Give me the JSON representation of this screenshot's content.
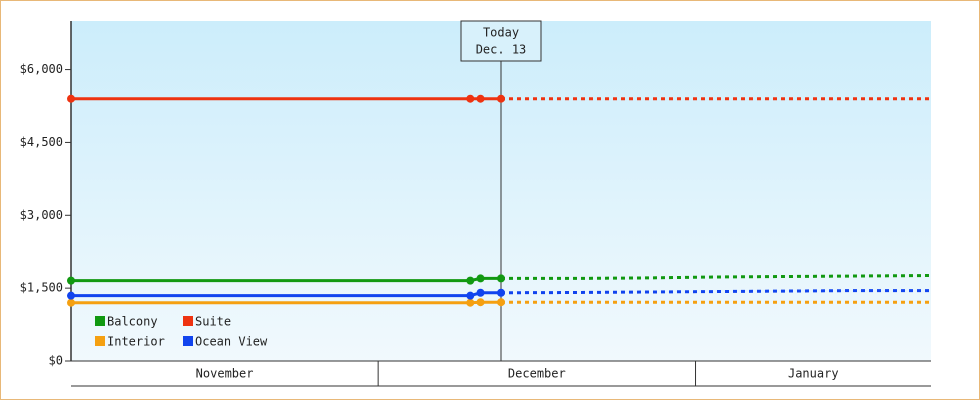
{
  "chart_data": {
    "type": "line",
    "x": [
      0,
      39,
      40,
      42
    ],
    "forecast_x": [
      42,
      49,
      56,
      63,
      70,
      77,
      84
    ],
    "xlim": [
      0,
      84
    ],
    "x_bands": [
      {
        "label": "November",
        "start": 0,
        "end": 30
      },
      {
        "label": "December",
        "start": 30,
        "end": 61
      },
      {
        "label": "January",
        "start": 61,
        "end": 84
      }
    ],
    "today": {
      "x": 42,
      "title": "Today",
      "date": "Dec. 13"
    },
    "ylim": [
      0,
      7000
    ],
    "yticks": [
      {
        "value": 0,
        "label": "$0"
      },
      {
        "value": 1500,
        "label": "$1,500"
      },
      {
        "value": 3000,
        "label": "$3,000"
      },
      {
        "value": 4500,
        "label": "$4,500"
      },
      {
        "value": 6000,
        "label": "$6,000"
      }
    ],
    "series": [
      {
        "name": "Balcony",
        "color": "#119911",
        "values": [
          1655,
          1655,
          1700,
          1700
        ],
        "forecast": [
          1700,
          1700,
          1710,
          1730,
          1740,
          1750,
          1760
        ]
      },
      {
        "name": "Suite",
        "color": "#ee3311",
        "values": [
          5400,
          5400,
          5400,
          5400
        ],
        "forecast": [
          5400,
          5400,
          5400,
          5400,
          5400,
          5400,
          5400
        ]
      },
      {
        "name": "Interior",
        "color": "#f5a011",
        "values": [
          1200,
          1200,
          1210,
          1210
        ],
        "forecast": [
          1210,
          1210,
          1210,
          1210,
          1210,
          1210,
          1210
        ]
      },
      {
        "name": "Ocean View",
        "color": "#1144ee",
        "values": [
          1345,
          1345,
          1405,
          1405
        ],
        "forecast": [
          1405,
          1410,
          1420,
          1430,
          1440,
          1450,
          1450
        ]
      }
    ]
  }
}
